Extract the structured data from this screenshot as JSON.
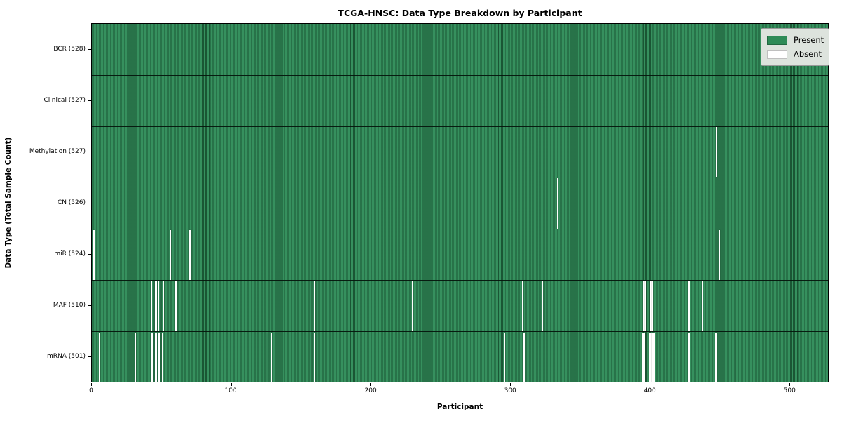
{
  "title": "TCGA-HNSC: Data Type Breakdown by Participant",
  "axes": {
    "x_label": "Participant",
    "y_label": "Data Type (Total Sample Count)"
  },
  "legend": {
    "present_label": "Present",
    "absent_label": "Absent"
  },
  "colors": {
    "present": "#2e8b57",
    "absent": "#ffffff"
  },
  "chart_data": {
    "type": "heatmap",
    "title": "TCGA-HNSC: Data Type Breakdown by Participant",
    "xlabel": "Participant",
    "ylabel": "Data Type (Total Sample Count)",
    "x_range": [
      0,
      528
    ],
    "x_ticks": [
      0,
      100,
      200,
      300,
      400,
      500
    ],
    "n_participants": 528,
    "grid": false,
    "legend_position": "upper right",
    "legend": [
      {
        "label": "Present",
        "color": "#2e8b57"
      },
      {
        "label": "Absent",
        "color": "#ffffff"
      }
    ],
    "rows": [
      {
        "data_type": "BCR",
        "label": "BCR (528)",
        "present_count": 528,
        "absent_count": 0,
        "absent_participants": []
      },
      {
        "data_type": "Clinical",
        "label": "Clinical (527)",
        "present_count": 527,
        "absent_count": 1,
        "absent_participants": [
          248
        ]
      },
      {
        "data_type": "Methylation",
        "label": "Methylation (527)",
        "present_count": 527,
        "absent_count": 1,
        "absent_participants": [
          447
        ]
      },
      {
        "data_type": "CN",
        "label": "CN (526)",
        "present_count": 526,
        "absent_count": 2,
        "absent_participants": [
          332,
          333
        ]
      },
      {
        "data_type": "miR",
        "label": "miR (524)",
        "present_count": 524,
        "absent_count": 4,
        "absent_participants": [
          1,
          56,
          70,
          449
        ]
      },
      {
        "data_type": "MAF",
        "label": "MAF (510)",
        "present_count": 510,
        "absent_count": 18,
        "absent_participants": [
          42,
          44,
          45,
          46,
          47,
          49,
          51,
          60,
          159,
          229,
          308,
          322,
          395,
          396,
          400,
          401,
          427,
          437
        ]
      },
      {
        "data_type": "mRNA",
        "label": "mRNA (501)",
        "present_count": 501,
        "absent_count": 27,
        "absent_participants": [
          5,
          31,
          42,
          43,
          44,
          45,
          46,
          47,
          48,
          49,
          50,
          125,
          128,
          157,
          159,
          295,
          309,
          394,
          395,
          399,
          400,
          401,
          402,
          427,
          446,
          447,
          460
        ]
      }
    ]
  }
}
